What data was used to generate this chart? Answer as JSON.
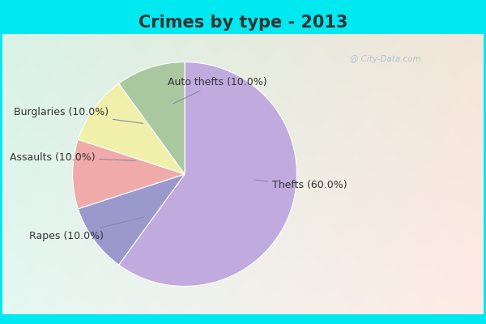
{
  "title": "Crimes by type - 2013",
  "labels": [
    "Thefts",
    "Auto thefts",
    "Burglaries",
    "Assaults",
    "Rapes"
  ],
  "values": [
    60.0,
    10.0,
    10.0,
    10.0,
    10.0
  ],
  "colors": [
    "#c0aade",
    "#9999cc",
    "#f0aaaa",
    "#f0f0aa",
    "#aac8a0"
  ],
  "label_texts": [
    "Thefts (60.0%)",
    "Auto thefts (10.0%)",
    "Burglaries (10.0%)",
    "Assaults (10.0%)",
    "Rapes (10.0%)"
  ],
  "startangle": 90,
  "title_color": "#333333",
  "label_color": "#333333",
  "title_fontsize": 15,
  "label_fontsize": 9,
  "bg_top_color": "#00e8f0",
  "bg_chart_color_tl": "#d8f0e8",
  "bg_chart_color_br": "#ffffff",
  "watermark": "@ City-Data.com"
}
